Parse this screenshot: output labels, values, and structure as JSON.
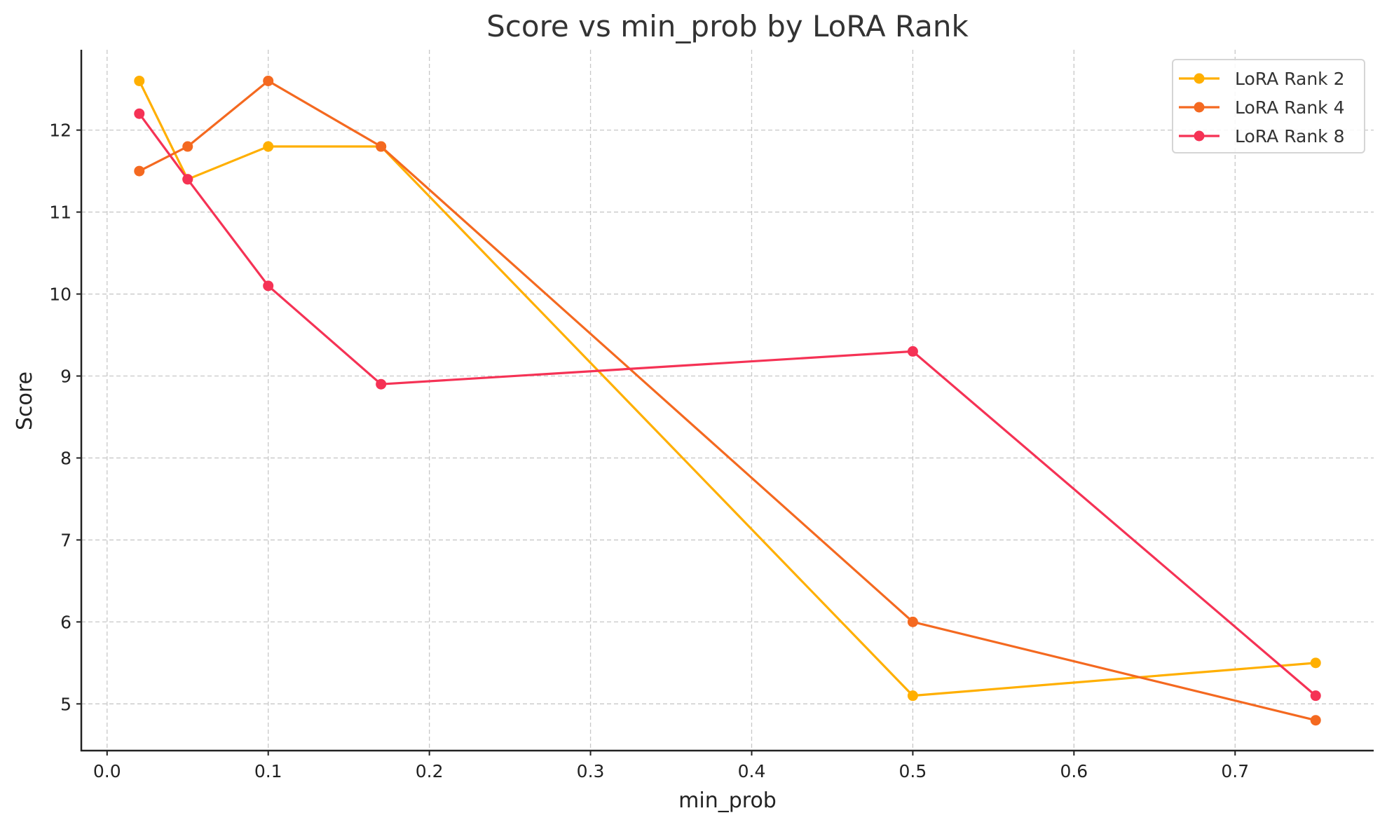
{
  "chart_data": {
    "type": "line",
    "title": "Score vs min_prob by LoRA Rank",
    "xlabel": "min_prob",
    "ylabel": "Score",
    "xlim": [
      -0.016,
      0.786
    ],
    "ylim": [
      4.43,
      12.98
    ],
    "xticks": [
      0.0,
      0.1,
      0.2,
      0.3,
      0.4,
      0.5,
      0.6,
      0.7
    ],
    "xtick_labels": [
      "0.0",
      "0.1",
      "0.2",
      "0.3",
      "0.4",
      "0.5",
      "0.6",
      "0.7"
    ],
    "yticks": [
      5,
      6,
      7,
      8,
      9,
      10,
      11,
      12
    ],
    "ytick_labels": [
      "5",
      "6",
      "7",
      "8",
      "9",
      "10",
      "11",
      "12"
    ],
    "grid": true,
    "legend_position": "top-right",
    "x": [
      0.02,
      0.05,
      0.1,
      0.17,
      0.5,
      0.75
    ],
    "series": [
      {
        "name": "LoRA Rank 2",
        "color": "#FFAF00",
        "values": [
          12.6,
          11.4,
          11.8,
          11.8,
          5.1,
          5.5
        ]
      },
      {
        "name": "LoRA Rank 4",
        "color": "#F46920",
        "values": [
          11.5,
          11.8,
          12.6,
          11.8,
          6.0,
          4.8
        ]
      },
      {
        "name": "LoRA Rank 8",
        "color": "#F53255",
        "values": [
          12.2,
          11.4,
          10.1,
          8.9,
          9.3,
          5.1
        ]
      }
    ]
  }
}
